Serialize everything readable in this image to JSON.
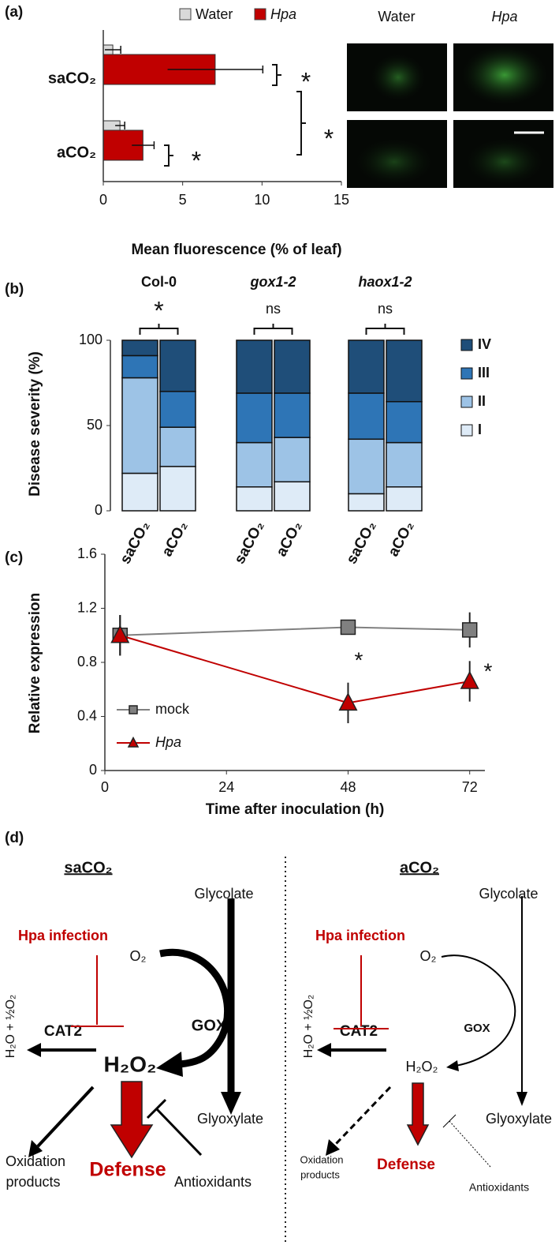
{
  "chart_data": [
    {
      "type": "hbar",
      "panel": "(a)",
      "xlabel": "Mean fluorescence (% of leaf)",
      "categories": [
        "saCO₂",
        "aCO₂"
      ],
      "series": [
        {
          "name": "Water",
          "color": "#d9d9d9",
          "values": [
            0.6,
            1.05
          ],
          "errors": [
            0.5,
            0.3
          ]
        },
        {
          "name": "Hpa",
          "color": "#c00000",
          "values": [
            7.05,
            2.5
          ],
          "errors": [
            3.0,
            0.7
          ]
        }
      ],
      "xlim": [
        0,
        15
      ],
      "xticks": [
        0,
        5,
        10,
        15
      ],
      "annotations": [
        "*",
        "*",
        "*"
      ],
      "image_labels": [
        "Water",
        "Hpa"
      ]
    },
    {
      "type": "stacked_bar",
      "panel": "(b)",
      "ylabel": "Disease severity (%)",
      "groups": [
        "Col-0",
        "gox1-2",
        "haox1-2"
      ],
      "group_annotations": [
        "*",
        "ns",
        "ns"
      ],
      "categories": [
        "saCO₂",
        "aCO₂",
        "saCO₂",
        "aCO₂",
        "saCO₂",
        "aCO₂"
      ],
      "series": [
        {
          "name": "I",
          "color": "#deebf7",
          "values": [
            22,
            26,
            14,
            17,
            10,
            14
          ]
        },
        {
          "name": "II",
          "color": "#9dc3e6",
          "values": [
            56,
            23,
            26,
            26,
            32,
            26
          ]
        },
        {
          "name": "III",
          "color": "#2e75b6",
          "values": [
            13,
            21,
            29,
            26,
            27,
            24
          ]
        },
        {
          "name": "IV",
          "color": "#1f4e79",
          "values": [
            9,
            30,
            31,
            31,
            31,
            36
          ]
        }
      ],
      "ylim": [
        0,
        100
      ],
      "yticks": [
        0,
        50,
        100
      ]
    },
    {
      "type": "line",
      "panel": "(c)",
      "xlabel": "Time after inoculation (h)",
      "ylabel": "Relative expression",
      "x": [
        3,
        48,
        72
      ],
      "series": [
        {
          "name": "mock",
          "color": "#808080",
          "marker": "square",
          "values": [
            1.0,
            1.06,
            1.04
          ],
          "errors": [
            0.15,
            0.03,
            0.13
          ]
        },
        {
          "name": "Hpa",
          "color": "#c00000",
          "marker": "triangle",
          "values": [
            1.0,
            0.5,
            0.66
          ],
          "errors": [
            0.15,
            0.15,
            0.15
          ]
        }
      ],
      "xlim": [
        0,
        75
      ],
      "xticks": [
        0,
        24,
        48,
        72
      ],
      "ylim": [
        0,
        1.6
      ],
      "yticks": [
        0,
        0.4,
        0.8,
        1.2,
        1.6
      ],
      "annotations": [
        "*",
        "*"
      ]
    }
  ],
  "diagram": {
    "panel": "(d)",
    "left": {
      "title": "saCO₂",
      "glycolate": "Glycolate",
      "infection": "Hpa infection",
      "o2": "O₂",
      "gox": "GOX",
      "cat2": "CAT2",
      "h2o2": "H₂O₂",
      "water": "H₂O + ½O₂",
      "glyoxylate": "Glyoxylate",
      "defense": "Defense",
      "oxidation": [
        "Oxidation",
        "products"
      ],
      "antioxidants": "Antioxidants"
    },
    "right": {
      "title": "aCO₂",
      "glycolate": "Glycolate",
      "infection": "Hpa infection",
      "o2": "O₂",
      "gox": "GOX",
      "cat2": "CAT2",
      "h2o2": "H₂O₂",
      "water": "H₂O + ½O₂",
      "glyoxylate": "Glyoxylate",
      "defense": "Defense",
      "oxidation": [
        "Oxidation",
        "products"
      ],
      "antioxidants": "Antioxidants"
    }
  }
}
